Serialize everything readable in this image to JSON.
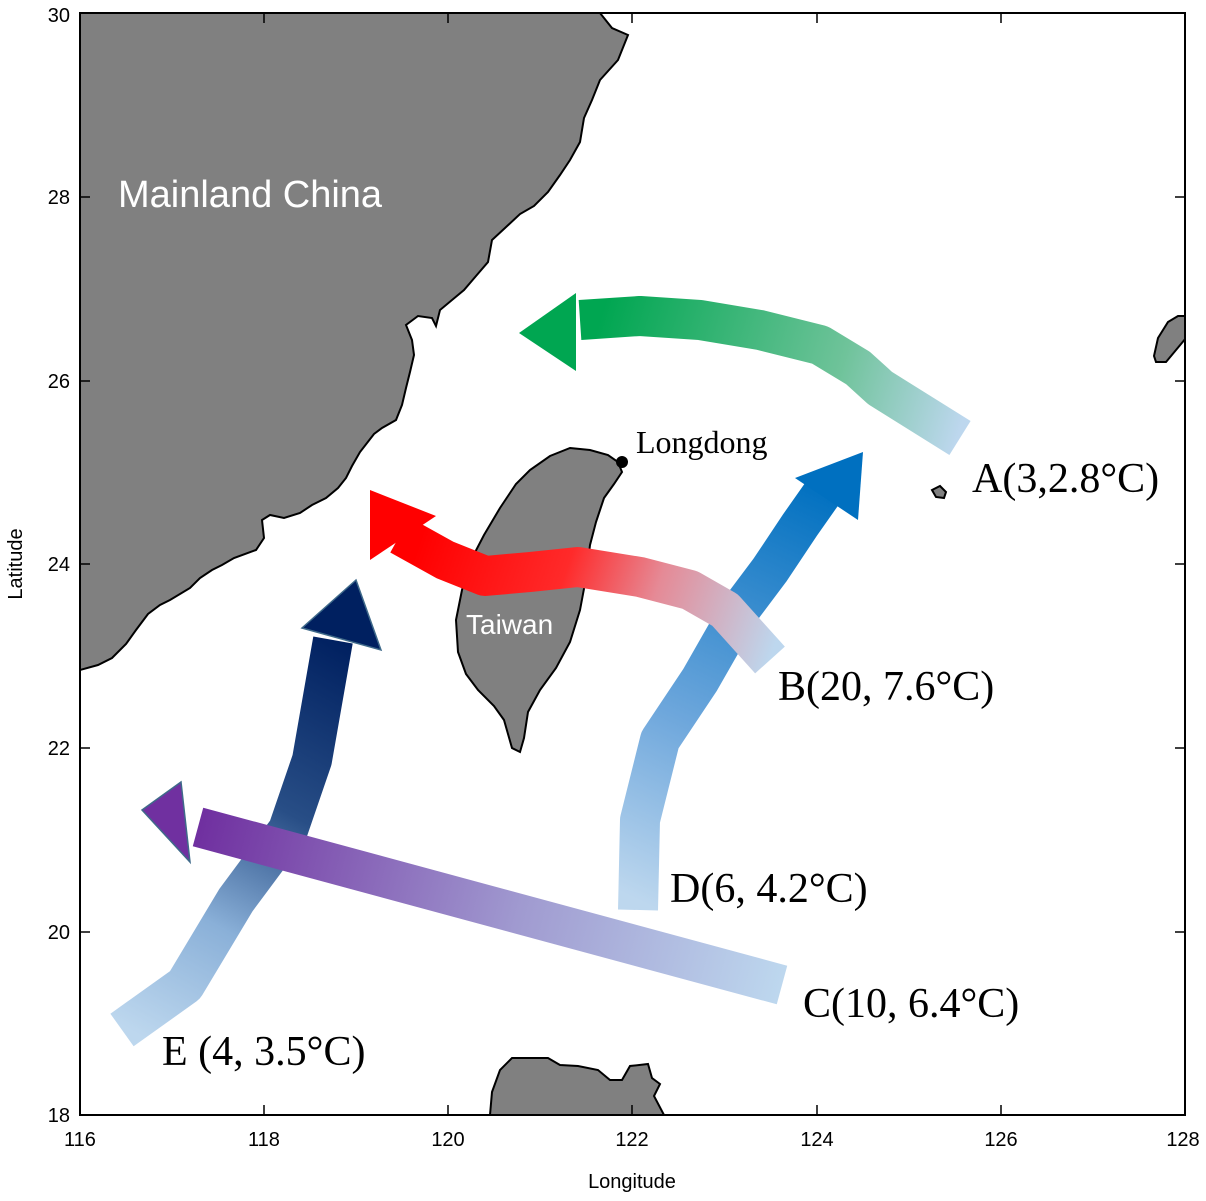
{
  "map": {
    "x_axis": {
      "label": "Longitude",
      "ticks": [
        "116",
        "118",
        "120",
        "122",
        "124",
        "126",
        "128"
      ]
    },
    "y_axis": {
      "label": "Latitude",
      "ticks": [
        "18",
        "20",
        "22",
        "24",
        "26",
        "28",
        "30"
      ]
    },
    "places": {
      "mainland": "Mainland China",
      "taiwan": "Taiwan",
      "longdong": "Longdong"
    },
    "colors": {
      "land": "#808080",
      "sea": "#ffffff"
    }
  },
  "routes": [
    {
      "id": "A",
      "label": "A(3,2.8°C)",
      "color": "#00a651"
    },
    {
      "id": "B",
      "label": "B(20, 7.6°C)",
      "color": "#ff1a1a"
    },
    {
      "id": "C",
      "label": "C(10, 6.4°C)",
      "color": "#7030a0"
    },
    {
      "id": "D",
      "label": "D(6, 4.2°C)",
      "color": "#0070c0"
    },
    {
      "id": "E",
      "label": "E (4, 3.5°C)",
      "color": "#002060"
    }
  ]
}
